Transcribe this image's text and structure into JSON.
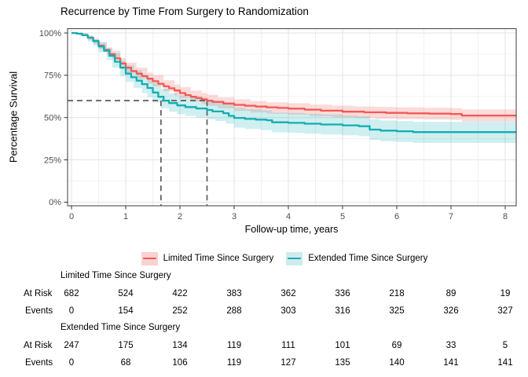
{
  "title": "Recurrence by Time From Surgery to Randomization",
  "chart_data": {
    "type": "line",
    "subtype": "kaplan-meier-step",
    "title": "Recurrence by Time From Surgery to Randomization",
    "xlabel": "Follow-up time, years",
    "ylabel": "Percentage Survival",
    "x_ticks": [
      0,
      1,
      2,
      3,
      4,
      5,
      6,
      7,
      8
    ],
    "y_ticks": [
      0,
      25,
      50,
      75,
      100
    ],
    "y_tick_labels": [
      "0%",
      "25%",
      "50%",
      "75%",
      "100%"
    ],
    "xlim": [
      -0.1,
      8.2
    ],
    "ylim": [
      0,
      100
    ],
    "grid": "on",
    "legend_position": "bottom",
    "ref_lines": {
      "survival_pct": 60,
      "times_years": [
        1.65,
        2.5
      ]
    },
    "series": [
      {
        "name": "Limited Time Since Surgery",
        "color": "#F05A55",
        "band_color": "rgba(240,90,85,0.22)",
        "key_fill": "#F9D3D0",
        "points": [
          [
            0,
            100
          ],
          [
            0.1,
            99.6
          ],
          [
            0.2,
            98.7
          ],
          [
            0.3,
            97.2
          ],
          [
            0.4,
            95.2
          ],
          [
            0.5,
            92.5
          ],
          [
            0.6,
            90
          ],
          [
            0.7,
            87.5
          ],
          [
            0.8,
            85
          ],
          [
            0.9,
            82
          ],
          [
            1.0,
            79.5
          ],
          [
            1.1,
            77.5
          ],
          [
            1.2,
            76
          ],
          [
            1.3,
            74.5
          ],
          [
            1.4,
            73
          ],
          [
            1.5,
            71.5
          ],
          [
            1.6,
            70
          ],
          [
            1.7,
            68.5
          ],
          [
            1.8,
            67.3
          ],
          [
            1.9,
            66
          ],
          [
            2.0,
            64.5
          ],
          [
            2.1,
            63.3
          ],
          [
            2.2,
            62.3
          ],
          [
            2.3,
            61.6
          ],
          [
            2.4,
            60.8
          ],
          [
            2.5,
            60
          ],
          [
            2.6,
            59.3
          ],
          [
            2.8,
            58.3
          ],
          [
            3.0,
            57.5
          ],
          [
            3.2,
            57
          ],
          [
            3.4,
            56.5
          ],
          [
            3.6,
            56.1
          ],
          [
            3.8,
            55.7
          ],
          [
            4.0,
            55.3
          ],
          [
            4.3,
            54.7
          ],
          [
            4.6,
            54.1
          ],
          [
            5.0,
            53.5
          ],
          [
            5.4,
            53.1
          ],
          [
            5.8,
            52.8
          ],
          [
            6.2,
            52.5
          ],
          [
            6.6,
            52.3
          ],
          [
            7.0,
            52.1
          ],
          [
            7.2,
            51.2
          ],
          [
            8.2,
            51.2
          ]
        ],
        "band": [
          [
            0,
            100,
            100
          ],
          [
            0.15,
            98.5,
            99.8
          ],
          [
            0.3,
            96,
            98.5
          ],
          [
            0.4,
            93.5,
            96.5
          ],
          [
            0.5,
            90.5,
            94.5
          ],
          [
            0.65,
            87,
            91.5
          ],
          [
            0.75,
            84.5,
            89.5
          ],
          [
            0.9,
            79.5,
            85
          ],
          [
            1.0,
            76.5,
            82.5
          ],
          [
            1.2,
            73,
            79.5
          ],
          [
            1.4,
            70,
            76.5
          ],
          [
            1.5,
            68.5,
            75
          ],
          [
            1.7,
            65.5,
            72
          ],
          [
            1.9,
            63,
            69.5
          ],
          [
            2.0,
            61.5,
            68
          ],
          [
            2.2,
            59.5,
            66
          ],
          [
            2.4,
            58,
            64.5
          ],
          [
            2.5,
            57,
            63.5
          ],
          [
            2.7,
            55.5,
            62
          ],
          [
            3.0,
            54,
            60.8
          ],
          [
            3.3,
            53,
            59.8
          ],
          [
            3.6,
            52.3,
            59
          ],
          [
            4.0,
            51.7,
            58.5
          ],
          [
            4.4,
            50.8,
            57.6
          ],
          [
            4.8,
            50.2,
            57
          ],
          [
            5.2,
            49.8,
            56.6
          ],
          [
            5.6,
            49.4,
            56.3
          ],
          [
            6.0,
            49.1,
            56
          ],
          [
            6.5,
            48.8,
            55.8
          ],
          [
            7.0,
            48.6,
            55.6
          ],
          [
            7.2,
            47.6,
            54.8
          ],
          [
            8.2,
            47.6,
            54.8
          ]
        ]
      },
      {
        "name": "Extended Time Since Surgery",
        "color": "#11AEB2",
        "band_color": "rgba(17,174,178,0.20)",
        "key_fill": "#CFEBEC",
        "points": [
          [
            0,
            100
          ],
          [
            0.1,
            99.6
          ],
          [
            0.2,
            98.7
          ],
          [
            0.3,
            97.2
          ],
          [
            0.4,
            95.2
          ],
          [
            0.5,
            92
          ],
          [
            0.6,
            89.5
          ],
          [
            0.7,
            86.5
          ],
          [
            0.8,
            83
          ],
          [
            0.9,
            79.5
          ],
          [
            1.0,
            76
          ],
          [
            1.1,
            73.8
          ],
          [
            1.2,
            71.8
          ],
          [
            1.3,
            69.8
          ],
          [
            1.4,
            67.5
          ],
          [
            1.5,
            64.8
          ],
          [
            1.6,
            62.3
          ],
          [
            1.7,
            60
          ],
          [
            1.8,
            58.6
          ],
          [
            1.95,
            57.2
          ],
          [
            2.1,
            56.2
          ],
          [
            2.3,
            55.4
          ],
          [
            2.5,
            54.5
          ],
          [
            2.6,
            53.6
          ],
          [
            2.8,
            52.6
          ],
          [
            2.9,
            51
          ],
          [
            3.0,
            49.8
          ],
          [
            3.2,
            49.2
          ],
          [
            3.4,
            48.8
          ],
          [
            3.6,
            48.4
          ],
          [
            3.7,
            47.2
          ],
          [
            4.0,
            46.9
          ],
          [
            4.3,
            46.4
          ],
          [
            4.6,
            45.9
          ],
          [
            5.0,
            45.4
          ],
          [
            5.3,
            44.9
          ],
          [
            5.5,
            42.9
          ],
          [
            5.7,
            42.3
          ],
          [
            6.0,
            41.9
          ],
          [
            6.3,
            41.4
          ],
          [
            8.2,
            41.4
          ]
        ],
        "band": [
          [
            0,
            100,
            100
          ],
          [
            0.15,
            98,
            99.7
          ],
          [
            0.3,
            95,
            98.3
          ],
          [
            0.4,
            92.5,
            96.5
          ],
          [
            0.5,
            88.5,
            94.5
          ],
          [
            0.65,
            84,
            91
          ],
          [
            0.75,
            79.5,
            88
          ],
          [
            0.9,
            74.5,
            83.5
          ],
          [
            1.0,
            71,
            81
          ],
          [
            1.15,
            67.5,
            78
          ],
          [
            1.3,
            64.5,
            75
          ],
          [
            1.4,
            62,
            73
          ],
          [
            1.5,
            59,
            70.5
          ],
          [
            1.65,
            55.5,
            67
          ],
          [
            1.8,
            53.5,
            64.5
          ],
          [
            1.95,
            52,
            63
          ],
          [
            2.1,
            51,
            62
          ],
          [
            2.3,
            50,
            61
          ],
          [
            2.5,
            49,
            60.3
          ],
          [
            2.65,
            48,
            59.3
          ],
          [
            2.85,
            46.5,
            58
          ],
          [
            3.0,
            44,
            55.8
          ],
          [
            3.2,
            43.2,
            55
          ],
          [
            3.5,
            42.6,
            54.3
          ],
          [
            3.7,
            41.3,
            53
          ],
          [
            4.0,
            41,
            52.8
          ],
          [
            4.3,
            40.5,
            52.3
          ],
          [
            4.6,
            40,
            51.8
          ],
          [
            5.0,
            39.5,
            51.3
          ],
          [
            5.3,
            39,
            50.8
          ],
          [
            5.5,
            36.8,
            49
          ],
          [
            5.7,
            36,
            48.3
          ],
          [
            6.0,
            35.6,
            47.9
          ],
          [
            6.3,
            35,
            47.5
          ],
          [
            8.2,
            35,
            47.5
          ]
        ]
      }
    ]
  },
  "risk_table": {
    "at_risk_label": "At Risk",
    "events_label": "Events",
    "groups": [
      {
        "name": "Limited Time Since Surgery",
        "at_risk": [
          682,
          524,
          422,
          383,
          362,
          336,
          218,
          89,
          19
        ],
        "events": [
          0,
          154,
          252,
          288,
          303,
          316,
          325,
          326,
          327
        ]
      },
      {
        "name": "Extended Time Since Surgery",
        "at_risk": [
          247,
          175,
          134,
          119,
          111,
          101,
          69,
          33,
          5
        ],
        "events": [
          0,
          68,
          106,
          119,
          127,
          135,
          140,
          141,
          141
        ]
      }
    ]
  },
  "colors": {
    "grid_major": "#E3E3E3",
    "grid_minor": "#F0F0F0",
    "panel_border": "#4d4d4d",
    "ref_dash": "#5c5c5c",
    "tick_text": "#4d4d4d"
  }
}
